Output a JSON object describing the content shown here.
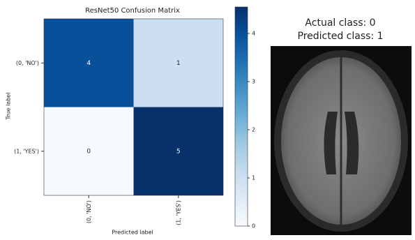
{
  "chart_data": {
    "type": "heatmap",
    "title": "ResNet50 Confusion Matrix",
    "x_label": "Predicted label",
    "y_label": "True label",
    "x_categories": [
      "(0, 'NO')",
      "(1, 'YES')"
    ],
    "y_categories": [
      "(0, 'NO')",
      "(1, 'YES')"
    ],
    "values": [
      [
        4,
        1
      ],
      [
        0,
        5
      ]
    ],
    "colormap": "Blues",
    "clim": [
      0,
      4.55
    ],
    "cticks": [
      0,
      1,
      2,
      3,
      4
    ]
  },
  "image_panel": {
    "title": [
      "Actual class: 0",
      "Predicted class: 1"
    ]
  }
}
